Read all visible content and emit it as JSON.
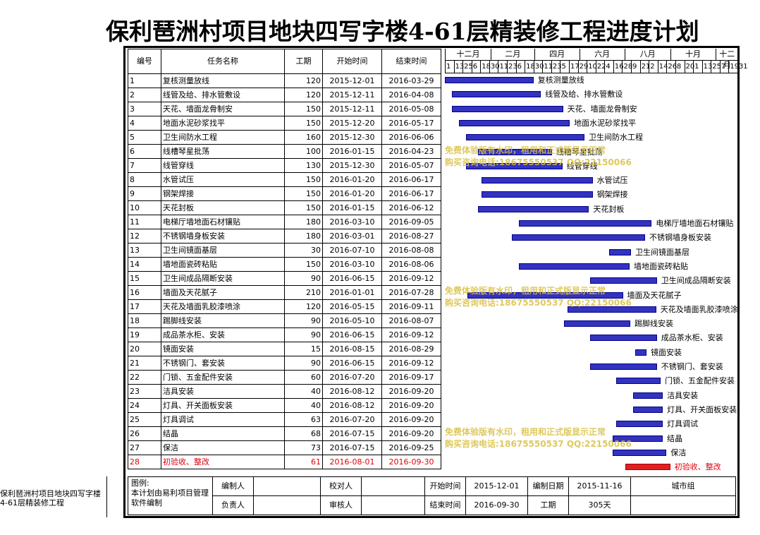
{
  "title": "保利琶洲村项目地块四写字楼4-61层精装修工程进度计划",
  "columns": {
    "id": "编号",
    "name": "任务名称",
    "duration": "工期",
    "start": "开始时间",
    "end": "结束时间"
  },
  "months": [
    "十二月",
    "二月",
    "四月",
    "六月",
    "八月",
    "十月",
    "十二月"
  ],
  "days": [
    "1",
    "13",
    "25",
    "6",
    "18",
    "30",
    "11",
    "23",
    "6",
    "18",
    "30",
    "11",
    "23",
    "5",
    "17",
    "29",
    "10",
    "22",
    "4",
    "16",
    "28",
    "9",
    "21",
    "2",
    "14",
    "26",
    "8",
    "20",
    "1",
    "13",
    "25",
    "7",
    "19",
    "31"
  ],
  "tasks": [
    {
      "id": "1",
      "name": "复核测量放线",
      "duration": "120",
      "start": "2015-12-01",
      "end": "2016-03-29",
      "s": 0,
      "e": 119
    },
    {
      "id": "2",
      "name": "线管及给、排水管敷设",
      "duration": "120",
      "start": "2015-12-11",
      "end": "2016-04-08",
      "s": 10,
      "e": 129
    },
    {
      "id": "3",
      "name": "天花、墙面龙骨制安",
      "duration": "150",
      "start": "2015-12-11",
      "end": "2016-05-08",
      "s": 10,
      "e": 159
    },
    {
      "id": "4",
      "name": "地面水泥砂浆找平",
      "duration": "150",
      "start": "2015-12-20",
      "end": "2016-05-17",
      "s": 19,
      "e": 168
    },
    {
      "id": "5",
      "name": "卫生间防水工程",
      "duration": "160",
      "start": "2015-12-30",
      "end": "2016-06-06",
      "s": 29,
      "e": 188
    },
    {
      "id": "6",
      "name": "线槽琴星批荡",
      "duration": "100",
      "start": "2016-01-15",
      "end": "2016-04-23",
      "s": 45,
      "e": 144
    },
    {
      "id": "7",
      "name": "线管穿线",
      "duration": "130",
      "start": "2015-12-30",
      "end": "2016-05-07",
      "s": 29,
      "e": 158
    },
    {
      "id": "8",
      "name": "水管试压",
      "duration": "150",
      "start": "2016-01-20",
      "end": "2016-06-17",
      "s": 50,
      "e": 199
    },
    {
      "id": "9",
      "name": "钢架焊接",
      "duration": "150",
      "start": "2016-01-20",
      "end": "2016-06-17",
      "s": 50,
      "e": 199
    },
    {
      "id": "10",
      "name": "天花封板",
      "duration": "150",
      "start": "2016-01-15",
      "end": "2016-06-12",
      "s": 45,
      "e": 194
    },
    {
      "id": "11",
      "name": "电梯厅墙地面石材镶贴",
      "duration": "180",
      "start": "2016-03-10",
      "end": "2016-09-05",
      "s": 100,
      "e": 279
    },
    {
      "id": "12",
      "name": "不锈钢墙身板安装",
      "duration": "180",
      "start": "2016-03-01",
      "end": "2016-08-27",
      "s": 91,
      "e": 270
    },
    {
      "id": "13",
      "name": "卫生间镜面基层",
      "duration": "30",
      "start": "2016-07-10",
      "end": "2016-08-08",
      "s": 222,
      "e": 251
    },
    {
      "id": "14",
      "name": "墙地面瓷砖粘贴",
      "duration": "150",
      "start": "2016-03-10",
      "end": "2016-08-06",
      "s": 100,
      "e": 249
    },
    {
      "id": "15",
      "name": "卫生间成品隔断安装",
      "duration": "90",
      "start": "2016-06-15",
      "end": "2016-09-12",
      "s": 197,
      "e": 286
    },
    {
      "id": "16",
      "name": "墙面及天花腻子",
      "duration": "210",
      "start": "2016-01-01",
      "end": "2016-07-28",
      "s": 31,
      "e": 240
    },
    {
      "id": "17",
      "name": "天花及墙面乳胶漆喷涂",
      "duration": "120",
      "start": "2016-05-15",
      "end": "2016-09-11",
      "s": 166,
      "e": 285
    },
    {
      "id": "18",
      "name": "踢脚线安装",
      "duration": "90",
      "start": "2016-05-10",
      "end": "2016-08-07",
      "s": 161,
      "e": 250
    },
    {
      "id": "19",
      "name": "成品茶水柜、安装",
      "duration": "90",
      "start": "2016-06-15",
      "end": "2016-09-12",
      "s": 197,
      "e": 286
    },
    {
      "id": "20",
      "name": "镜面安装",
      "duration": "15",
      "start": "2016-08-15",
      "end": "2016-08-29",
      "s": 258,
      "e": 272
    },
    {
      "id": "21",
      "name": "不锈钢门、套安装",
      "duration": "90",
      "start": "2016-06-15",
      "end": "2016-09-12",
      "s": 197,
      "e": 286
    },
    {
      "id": "22",
      "name": "门锁、五金配件安装",
      "duration": "60",
      "start": "2016-07-20",
      "end": "2016-09-17",
      "s": 232,
      "e": 291
    },
    {
      "id": "23",
      "name": "洁具安装",
      "duration": "40",
      "start": "2016-08-12",
      "end": "2016-09-20",
      "s": 255,
      "e": 294
    },
    {
      "id": "24",
      "name": "灯具、开关面板安装",
      "duration": "40",
      "start": "2016-08-12",
      "end": "2016-09-20",
      "s": 255,
      "e": 294
    },
    {
      "id": "25",
      "name": "灯具调试",
      "duration": "63",
      "start": "2016-07-20",
      "end": "2016-09-20",
      "s": 232,
      "e": 294
    },
    {
      "id": "26",
      "name": "结晶",
      "duration": "68",
      "start": "2016-07-15",
      "end": "2016-09-20",
      "s": 227,
      "e": 294
    },
    {
      "id": "27",
      "name": "保洁",
      "duration": "73",
      "start": "2016-07-15",
      "end": "2016-09-25",
      "s": 227,
      "e": 299
    },
    {
      "id": "28",
      "name": "初验收、整改",
      "duration": "61",
      "start": "2016-08-01",
      "end": "2016-09-30",
      "s": 244,
      "e": 304,
      "highlight": true
    }
  ],
  "watermarks": [
    {
      "line1": "免费体验版有水印，租用和正式版显示正常",
      "line2": "购买咨询电话:18675550537 QQ:22150066"
    },
    {
      "line1": "免费体验版有水印，租用和正式版显示正常",
      "line2": "购买咨询电话:18675550537 QQ:22150066"
    },
    {
      "line1": "免费体验版有水印，租用和正式版显示正常",
      "line2": "购买咨询电话:18675550537 QQ:22150066"
    }
  ],
  "footer": {
    "project_name": "保利琶洲村项目地块四写字楼4-61层精装修工程",
    "legend_label": "图例:",
    "note": "本计划由易利项目管理软件编制",
    "editor_label": "编制人",
    "checker_label": "校对人",
    "owner_label": "负责人",
    "reviewer_label": "审核人",
    "start_label": "开始时间",
    "start_value": "2015-12-01",
    "end_label": "结束时间",
    "end_value": "2016-09-30",
    "date_label": "编制日期",
    "date_value": "2015-11-16",
    "duration_label": "工期",
    "duration_value": "305天",
    "org": "城市组"
  },
  "colors": {
    "bar": "#3333c0",
    "highlight": "#e0000a",
    "watermark": "#d9bf3f"
  }
}
